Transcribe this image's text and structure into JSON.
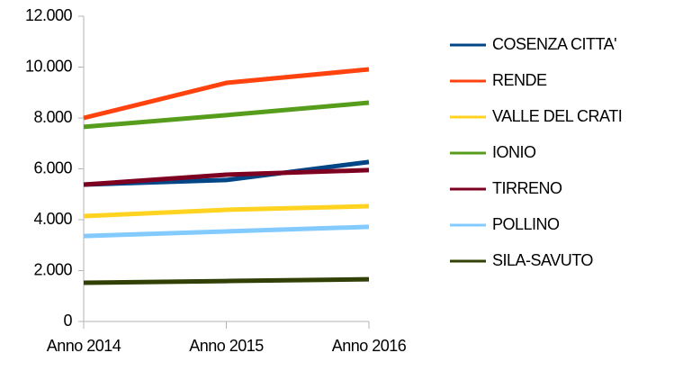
{
  "chart_data": {
    "type": "line",
    "categories": [
      "Anno 2014",
      "Anno 2015",
      "Anno 2016"
    ],
    "series": [
      {
        "name": "COSENZA CITTA'",
        "color": "#004586",
        "values": [
          5380,
          5560,
          6270
        ]
      },
      {
        "name": "RENDE",
        "color": "#ff420e",
        "values": [
          8000,
          9380,
          9910
        ]
      },
      {
        "name": "VALLE DEL CRATI",
        "color": "#ffd320",
        "values": [
          4140,
          4390,
          4530
        ]
      },
      {
        "name": "IONIO",
        "color": "#579d1c",
        "values": [
          7650,
          8110,
          8600
        ]
      },
      {
        "name": "TIRRENO",
        "color": "#7e0021",
        "values": [
          5380,
          5770,
          5950
        ]
      },
      {
        "name": "POLLINO",
        "color": "#83caff",
        "values": [
          3360,
          3540,
          3720
        ]
      },
      {
        "name": "SILA-SAVUTO",
        "color": "#314004",
        "values": [
          1520,
          1590,
          1660
        ]
      }
    ],
    "ylim": [
      0,
      12000
    ],
    "yticks": [
      0,
      {
        "value": 2000,
        "label": "2.000"
      },
      {
        "value": 4000,
        "label": "4.000"
      },
      {
        "value": 6000,
        "label": "6.000"
      },
      {
        "value": 8000,
        "label": "8.000"
      },
      {
        "value": 10000,
        "label": "10.000"
      },
      {
        "value": 12000,
        "label": "12.000"
      }
    ],
    "grid": false,
    "legend": "right"
  }
}
